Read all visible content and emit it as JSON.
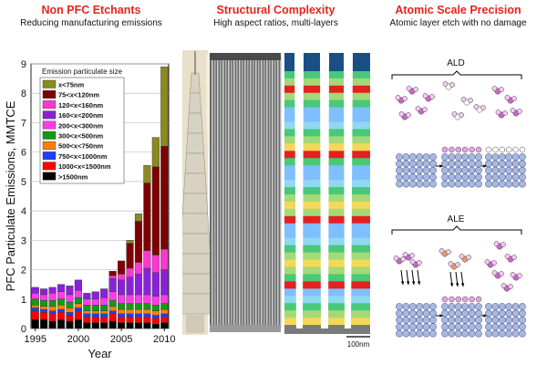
{
  "panels": {
    "pfc": {
      "title": "Non PFC Etchants",
      "subtitle": "Reducing manufacturing emissions"
    },
    "structural": {
      "title": "Structural Complexity",
      "subtitle": "High aspect ratios, multi-layers"
    },
    "atomic": {
      "title": "Atomic Scale Precision",
      "subtitle": "Atomic layer etch with no damage"
    }
  },
  "scale_bar_label": "100nm",
  "ald_label": "ALD",
  "ale_label": "ALE",
  "colors": {
    "accent_red": "#e8231d"
  },
  "chart_data": {
    "type": "bar",
    "stacked": true,
    "ylabel": "PFC Particulate Emissions, MMTCE",
    "xlabel": "Year",
    "ylim": [
      0,
      9
    ],
    "yticks": [
      0,
      1,
      2,
      3,
      4,
      5,
      6,
      7,
      8,
      9
    ],
    "xtick_labels": [
      "1995",
      "2000",
      "2005",
      "2010"
    ],
    "legend_title": "Emission particulate size",
    "legend_position": "top-left",
    "categories": [
      "1995",
      "1996",
      "1997",
      "1998",
      "1999",
      "2000",
      "2001",
      "2002",
      "2003",
      "2004",
      "2005",
      "2006",
      "2007",
      "2008",
      "2009",
      "2010"
    ],
    "series": [
      {
        "name": ">1500nm",
        "color": "#000000",
        "values": [
          0.3,
          0.3,
          0.25,
          0.3,
          0.25,
          0.3,
          0.2,
          0.2,
          0.2,
          0.25,
          0.2,
          0.2,
          0.2,
          0.2,
          0.15,
          0.2
        ]
      },
      {
        "name": "1000<x<1500nm",
        "color": "#ff0000",
        "values": [
          0.3,
          0.25,
          0.25,
          0.25,
          0.2,
          0.3,
          0.2,
          0.2,
          0.2,
          0.25,
          0.2,
          0.2,
          0.2,
          0.2,
          0.2,
          0.2
        ]
      },
      {
        "name": "750<x<1000nm",
        "color": "#1f3fff",
        "values": [
          0.1,
          0.1,
          0.1,
          0.1,
          0.1,
          0.1,
          0.1,
          0.1,
          0.1,
          0.1,
          0.1,
          0.1,
          0.1,
          0.1,
          0.1,
          0.1
        ]
      },
      {
        "name": "500<x<750nm",
        "color": "#ff8000",
        "values": [
          0.1,
          0.1,
          0.15,
          0.15,
          0.15,
          0.15,
          0.1,
          0.1,
          0.1,
          0.15,
          0.15,
          0.15,
          0.15,
          0.15,
          0.15,
          0.15
        ]
      },
      {
        "name": "300<x<500nm",
        "color": "#139a13",
        "values": [
          0.2,
          0.2,
          0.2,
          0.2,
          0.2,
          0.2,
          0.2,
          0.2,
          0.2,
          0.2,
          0.2,
          0.2,
          0.2,
          0.2,
          0.2,
          0.2
        ]
      },
      {
        "name": "200<x<300nm",
        "color": "#ff3ce6",
        "values": [
          0.2,
          0.2,
          0.25,
          0.25,
          0.25,
          0.25,
          0.2,
          0.2,
          0.25,
          0.3,
          0.3,
          0.3,
          0.3,
          0.3,
          0.3,
          0.3
        ]
      },
      {
        "name": "160<x<200nm",
        "color": "#8a21d9",
        "values": [
          0.2,
          0.2,
          0.2,
          0.25,
          0.3,
          0.35,
          0.2,
          0.25,
          0.3,
          0.45,
          0.5,
          0.6,
          0.7,
          0.9,
          0.8,
          0.85
        ]
      },
      {
        "name": "120<x<160nm",
        "color": "#ff36d0",
        "values": [
          0,
          0,
          0,
          0,
          0,
          0,
          0,
          0,
          0,
          0.1,
          0.2,
          0.3,
          0.4,
          0.6,
          0.6,
          0.7
        ]
      },
      {
        "name": "75<x<120nm",
        "color": "#7f0000",
        "values": [
          0,
          0,
          0,
          0,
          0,
          0,
          0,
          0,
          0,
          0.15,
          0.45,
          0.85,
          1.4,
          2.3,
          3.0,
          3.5
        ]
      },
      {
        "name": "x<75nm",
        "color": "#8a8a1e",
        "values": [
          0,
          0,
          0,
          0,
          0,
          0,
          0,
          0,
          0,
          0,
          0,
          0.1,
          0.25,
          0.6,
          1.0,
          2.7
        ]
      }
    ]
  }
}
